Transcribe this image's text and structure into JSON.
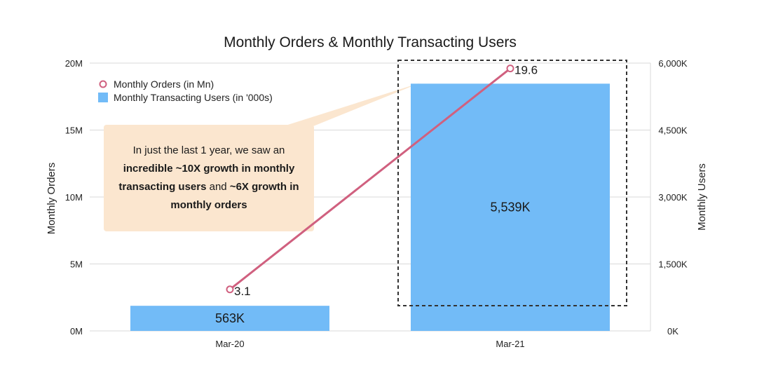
{
  "colors": {
    "bar": "#72BBF7",
    "line": "#D0607F",
    "callout": "#FBE6CF",
    "grid": "#D9D9D9"
  },
  "callout": {
    "intro": "In just the last 1 year, we saw an",
    "bold_1": "incredible ~10X growth in monthly transacting users",
    "connector": " and ",
    "bold_2": "~6X growth in monthly orders"
  },
  "chart_data": {
    "type": "bar",
    "title": "Monthly Orders & Monthly Transacting Users",
    "categories": [
      "Mar-20",
      "Mar-21"
    ],
    "y_left": {
      "label": "Monthly Orders",
      "range": [
        0,
        20
      ],
      "ticks": [
        "0M",
        "5M",
        "10M",
        "15M",
        "20M"
      ]
    },
    "y_right": {
      "label": "Monthly Users",
      "range": [
        0,
        6000
      ],
      "ticks": [
        "0K",
        "1,500K",
        "3,000K",
        "4,500K",
        "6,000K"
      ]
    },
    "series": [
      {
        "name": "Monthly Transacting Users (in '000s)",
        "type": "bar",
        "axis": "right",
        "values": [
          563,
          5539
        ],
        "labels": [
          "563K",
          "5,539K"
        ]
      },
      {
        "name": "Monthly Orders (in Mn)",
        "type": "line",
        "axis": "left",
        "values": [
          3.1,
          19.6
        ],
        "labels": [
          "3.1",
          "19.6"
        ]
      }
    ],
    "grid": true,
    "legend": "top-left",
    "highlight": "Mar-21"
  }
}
